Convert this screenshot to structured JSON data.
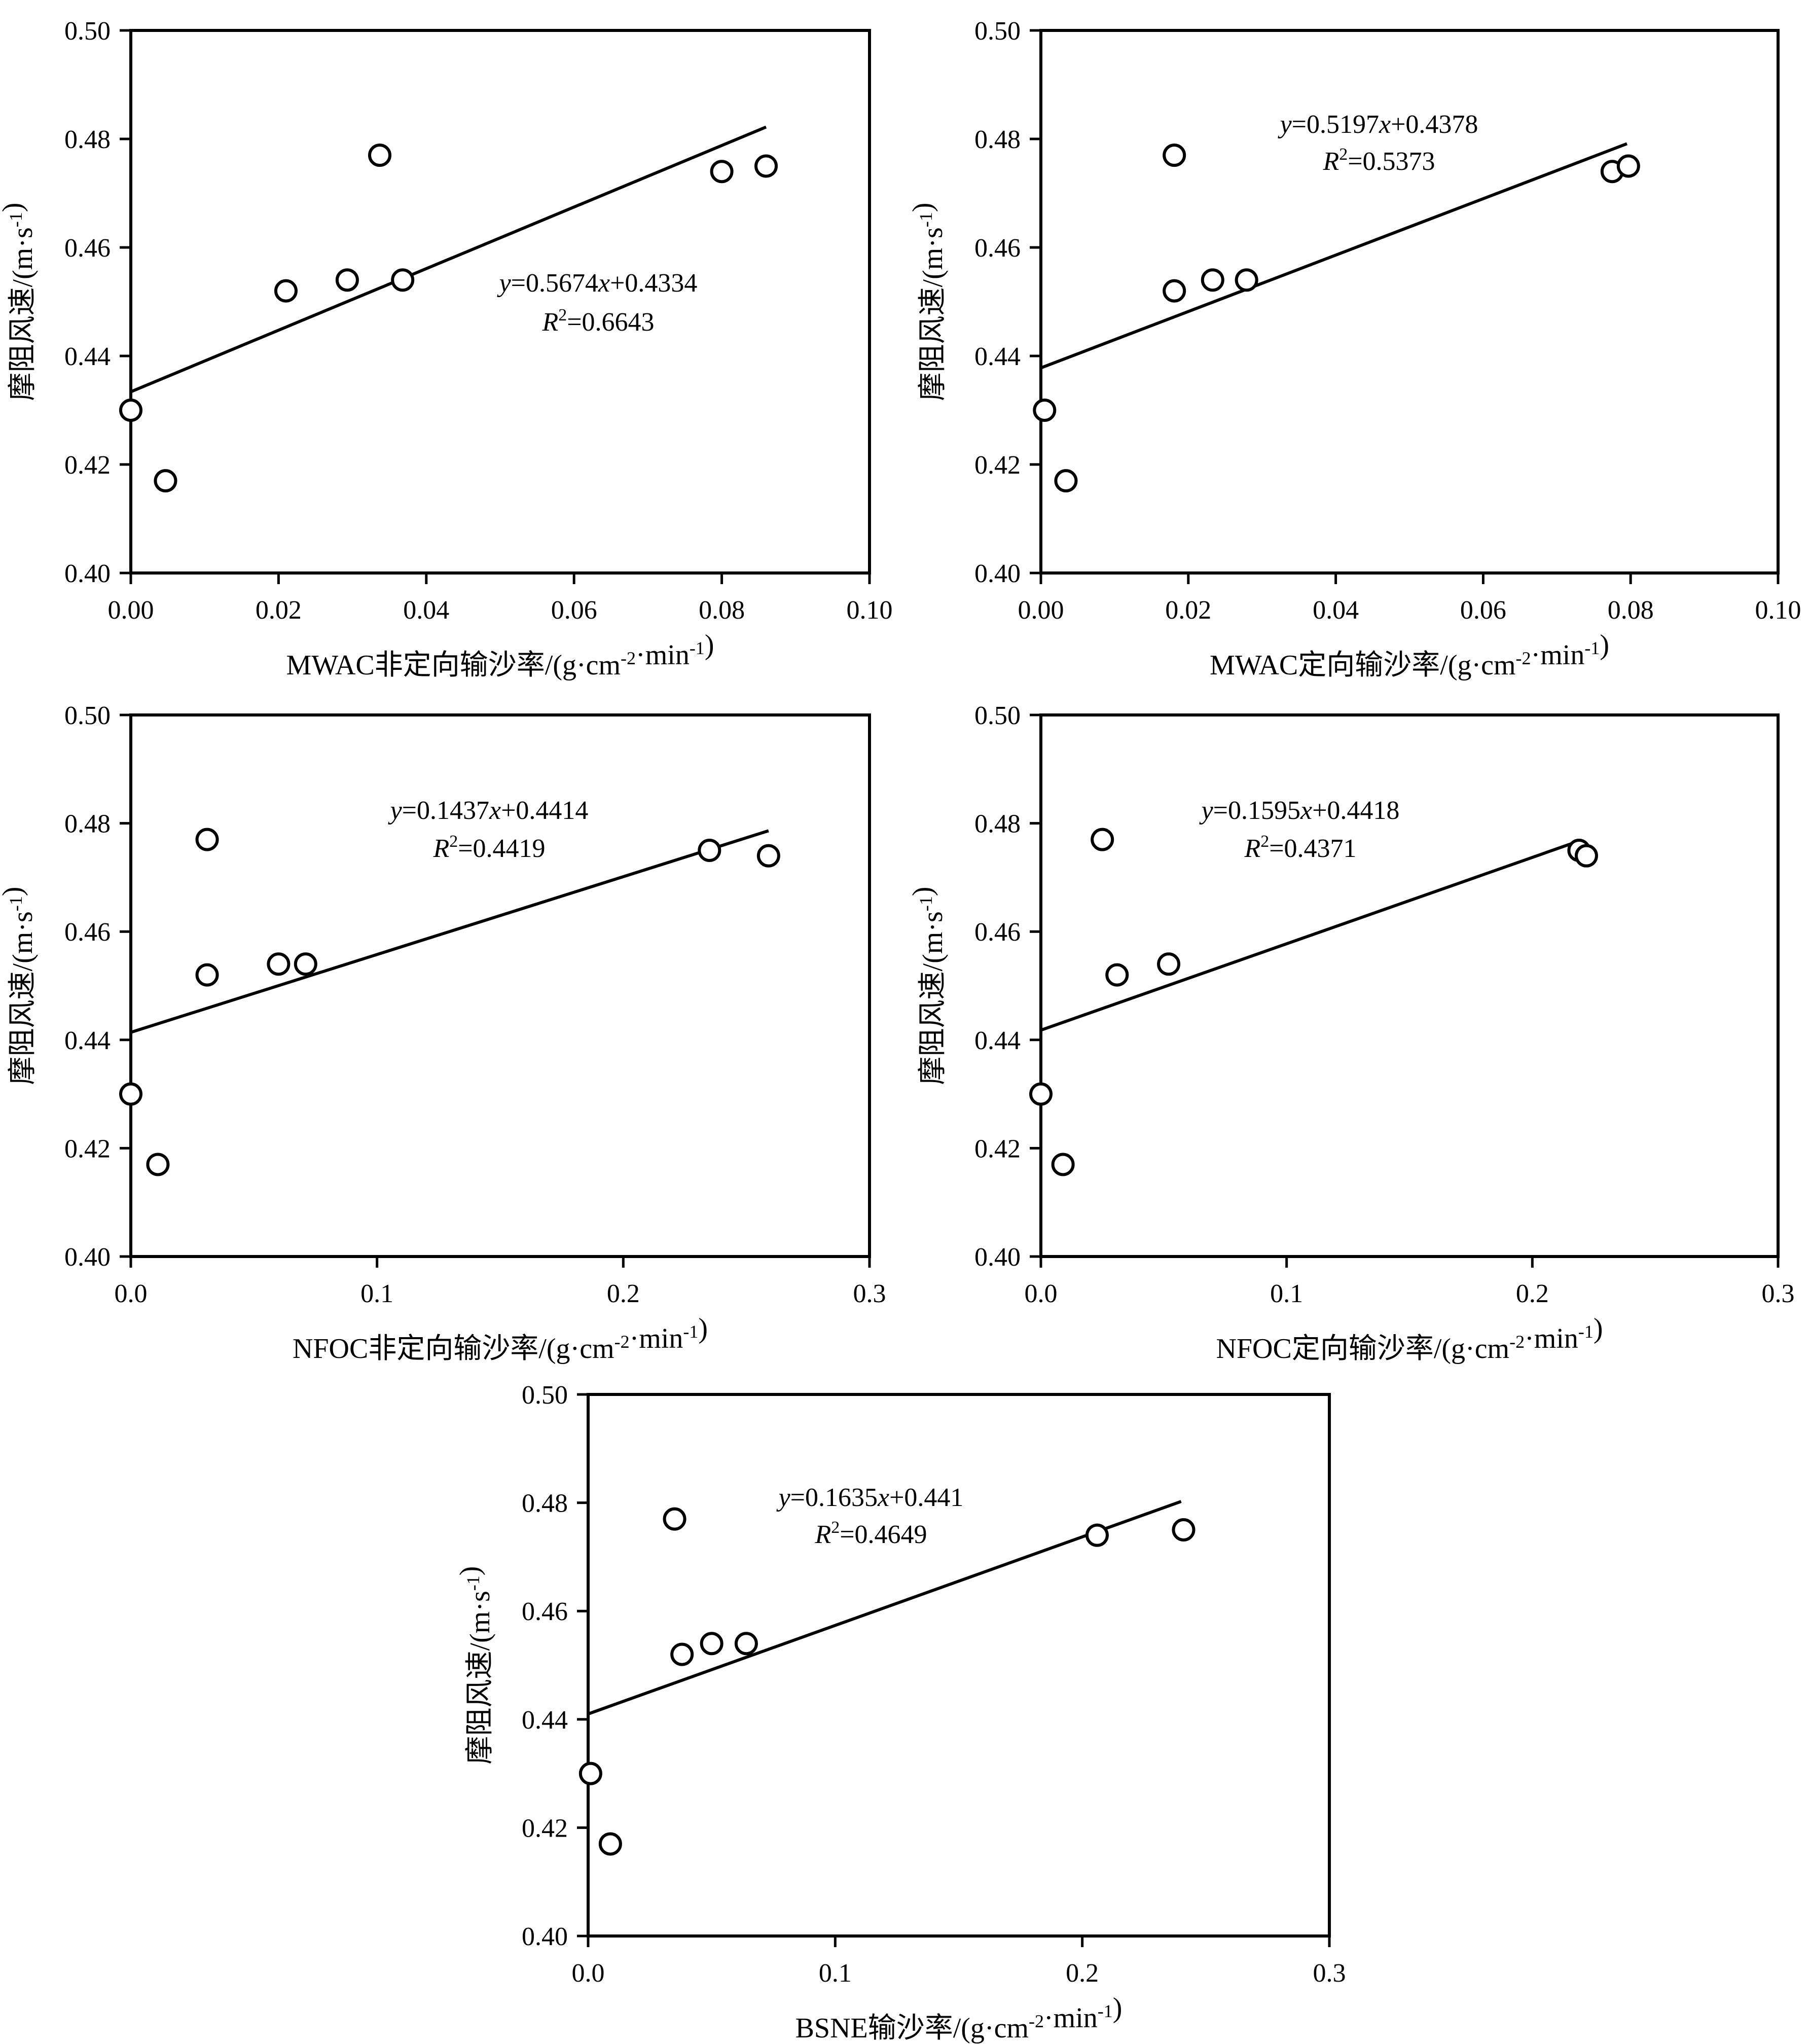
{
  "chart_data": [
    {
      "type": "scatter",
      "xlabel": "MWAC非定向输沙率/(g·cm⁻²·min⁻¹)",
      "ylabel": "摩阻风速/(m·s⁻¹)",
      "xlim": [
        0,
        0.1
      ],
      "ylim": [
        0.4,
        0.5
      ],
      "xticks": [
        "0.00",
        "0.02",
        "0.04",
        "0.06",
        "0.08",
        "0.10"
      ],
      "yticks": [
        "0.40",
        "0.42",
        "0.44",
        "0.46",
        "0.48",
        "0.50"
      ],
      "points": [
        {
          "x": 0.0,
          "y": 0.43
        },
        {
          "x": 0.0047,
          "y": 0.417
        },
        {
          "x": 0.021,
          "y": 0.452
        },
        {
          "x": 0.0293,
          "y": 0.454
        },
        {
          "x": 0.0337,
          "y": 0.477
        },
        {
          "x": 0.0368,
          "y": 0.454
        },
        {
          "x": 0.08,
          "y": 0.474
        },
        {
          "x": 0.086,
          "y": 0.475
        }
      ],
      "fit": {
        "slope": 0.5674,
        "intercept": 0.4334,
        "x_range": [
          0,
          0.086
        ]
      },
      "equation": "y=0.5674x+0.4334",
      "r2": "R²=0.6643"
    },
    {
      "type": "scatter",
      "xlabel": "MWAC定向输沙率/(g·cm⁻²·min⁻¹)",
      "ylabel": "摩阻风速/(m·s⁻¹)",
      "xlim": [
        0,
        0.1
      ],
      "ylim": [
        0.4,
        0.5
      ],
      "xticks": [
        "0.00",
        "0.02",
        "0.04",
        "0.06",
        "0.08",
        "0.10"
      ],
      "yticks": [
        "0.40",
        "0.42",
        "0.44",
        "0.46",
        "0.48",
        "0.50"
      ],
      "points": [
        {
          "x": 0.0005,
          "y": 0.43
        },
        {
          "x": 0.0034,
          "y": 0.417
        },
        {
          "x": 0.0181,
          "y": 0.452
        },
        {
          "x": 0.0181,
          "y": 0.477
        },
        {
          "x": 0.0233,
          "y": 0.454
        },
        {
          "x": 0.0279,
          "y": 0.454
        },
        {
          "x": 0.0775,
          "y": 0.474
        },
        {
          "x": 0.0797,
          "y": 0.475
        }
      ],
      "fit": {
        "slope": 0.5197,
        "intercept": 0.4378,
        "x_range": [
          0,
          0.0795
        ]
      },
      "equation": "y=0.5197x+0.4378",
      "r2": "R²=0.5373"
    },
    {
      "type": "scatter",
      "xlabel": "NFOC非定向输沙率/(g·cm⁻²·min⁻¹)",
      "ylabel": "摩阻风速/(m·s⁻¹)",
      "xlim": [
        0,
        0.3
      ],
      "ylim": [
        0.4,
        0.5
      ],
      "xticks": [
        "0.0",
        "0.1",
        "0.2",
        "0.3"
      ],
      "yticks": [
        "0.40",
        "0.42",
        "0.44",
        "0.46",
        "0.48",
        "0.50"
      ],
      "points": [
        {
          "x": 0.0,
          "y": 0.43
        },
        {
          "x": 0.011,
          "y": 0.417
        },
        {
          "x": 0.031,
          "y": 0.452
        },
        {
          "x": 0.031,
          "y": 0.477
        },
        {
          "x": 0.06,
          "y": 0.454
        },
        {
          "x": 0.071,
          "y": 0.454
        },
        {
          "x": 0.235,
          "y": 0.475
        },
        {
          "x": 0.259,
          "y": 0.474
        }
      ],
      "fit": {
        "slope": 0.1437,
        "intercept": 0.4414,
        "x_range": [
          0,
          0.259
        ]
      },
      "equation": "y=0.1437x+0.4414",
      "r2": "R²=0.4419"
    },
    {
      "type": "scatter",
      "xlabel": "NFOC定向输沙率/(g·cm⁻²·min⁻¹)",
      "ylabel": "摩阻风速/(m·s⁻¹)",
      "xlim": [
        0,
        0.3
      ],
      "ylim": [
        0.4,
        0.5
      ],
      "xticks": [
        "0.0",
        "0.1",
        "0.2",
        "0.3"
      ],
      "yticks": [
        "0.40",
        "0.42",
        "0.44",
        "0.46",
        "0.48",
        "0.50"
      ],
      "points": [
        {
          "x": 0.0,
          "y": 0.43
        },
        {
          "x": 0.009,
          "y": 0.417
        },
        {
          "x": 0.025,
          "y": 0.477
        },
        {
          "x": 0.031,
          "y": 0.452
        },
        {
          "x": 0.052,
          "y": 0.454
        },
        {
          "x": 0.219,
          "y": 0.475
        },
        {
          "x": 0.222,
          "y": 0.474
        }
      ],
      "fit": {
        "slope": 0.1595,
        "intercept": 0.4418,
        "x_range": [
          0,
          0.22
        ]
      },
      "equation": "y=0.1595x+0.4418",
      "r2": "R²=0.4371"
    },
    {
      "type": "scatter",
      "xlabel": "BSNE输沙率/(g·cm⁻²·min⁻¹)",
      "ylabel": "摩阻风速/(m·s⁻¹)",
      "xlim": [
        0,
        0.3
      ],
      "ylim": [
        0.4,
        0.5
      ],
      "xticks": [
        "0.0",
        "0.1",
        "0.2",
        "0.3"
      ],
      "yticks": [
        "0.40",
        "0.42",
        "0.44",
        "0.46",
        "0.48",
        "0.50"
      ],
      "points": [
        {
          "x": 0.001,
          "y": 0.43
        },
        {
          "x": 0.009,
          "y": 0.417
        },
        {
          "x": 0.035,
          "y": 0.477
        },
        {
          "x": 0.038,
          "y": 0.452
        },
        {
          "x": 0.05,
          "y": 0.454
        },
        {
          "x": 0.064,
          "y": 0.454
        },
        {
          "x": 0.206,
          "y": 0.474
        },
        {
          "x": 0.241,
          "y": 0.475
        }
      ],
      "fit": {
        "slope": 0.1635,
        "intercept": 0.441,
        "x_range": [
          0,
          0.24
        ]
      },
      "equation": "y=0.1635x+0.441",
      "r2": "R²=0.4649"
    }
  ]
}
